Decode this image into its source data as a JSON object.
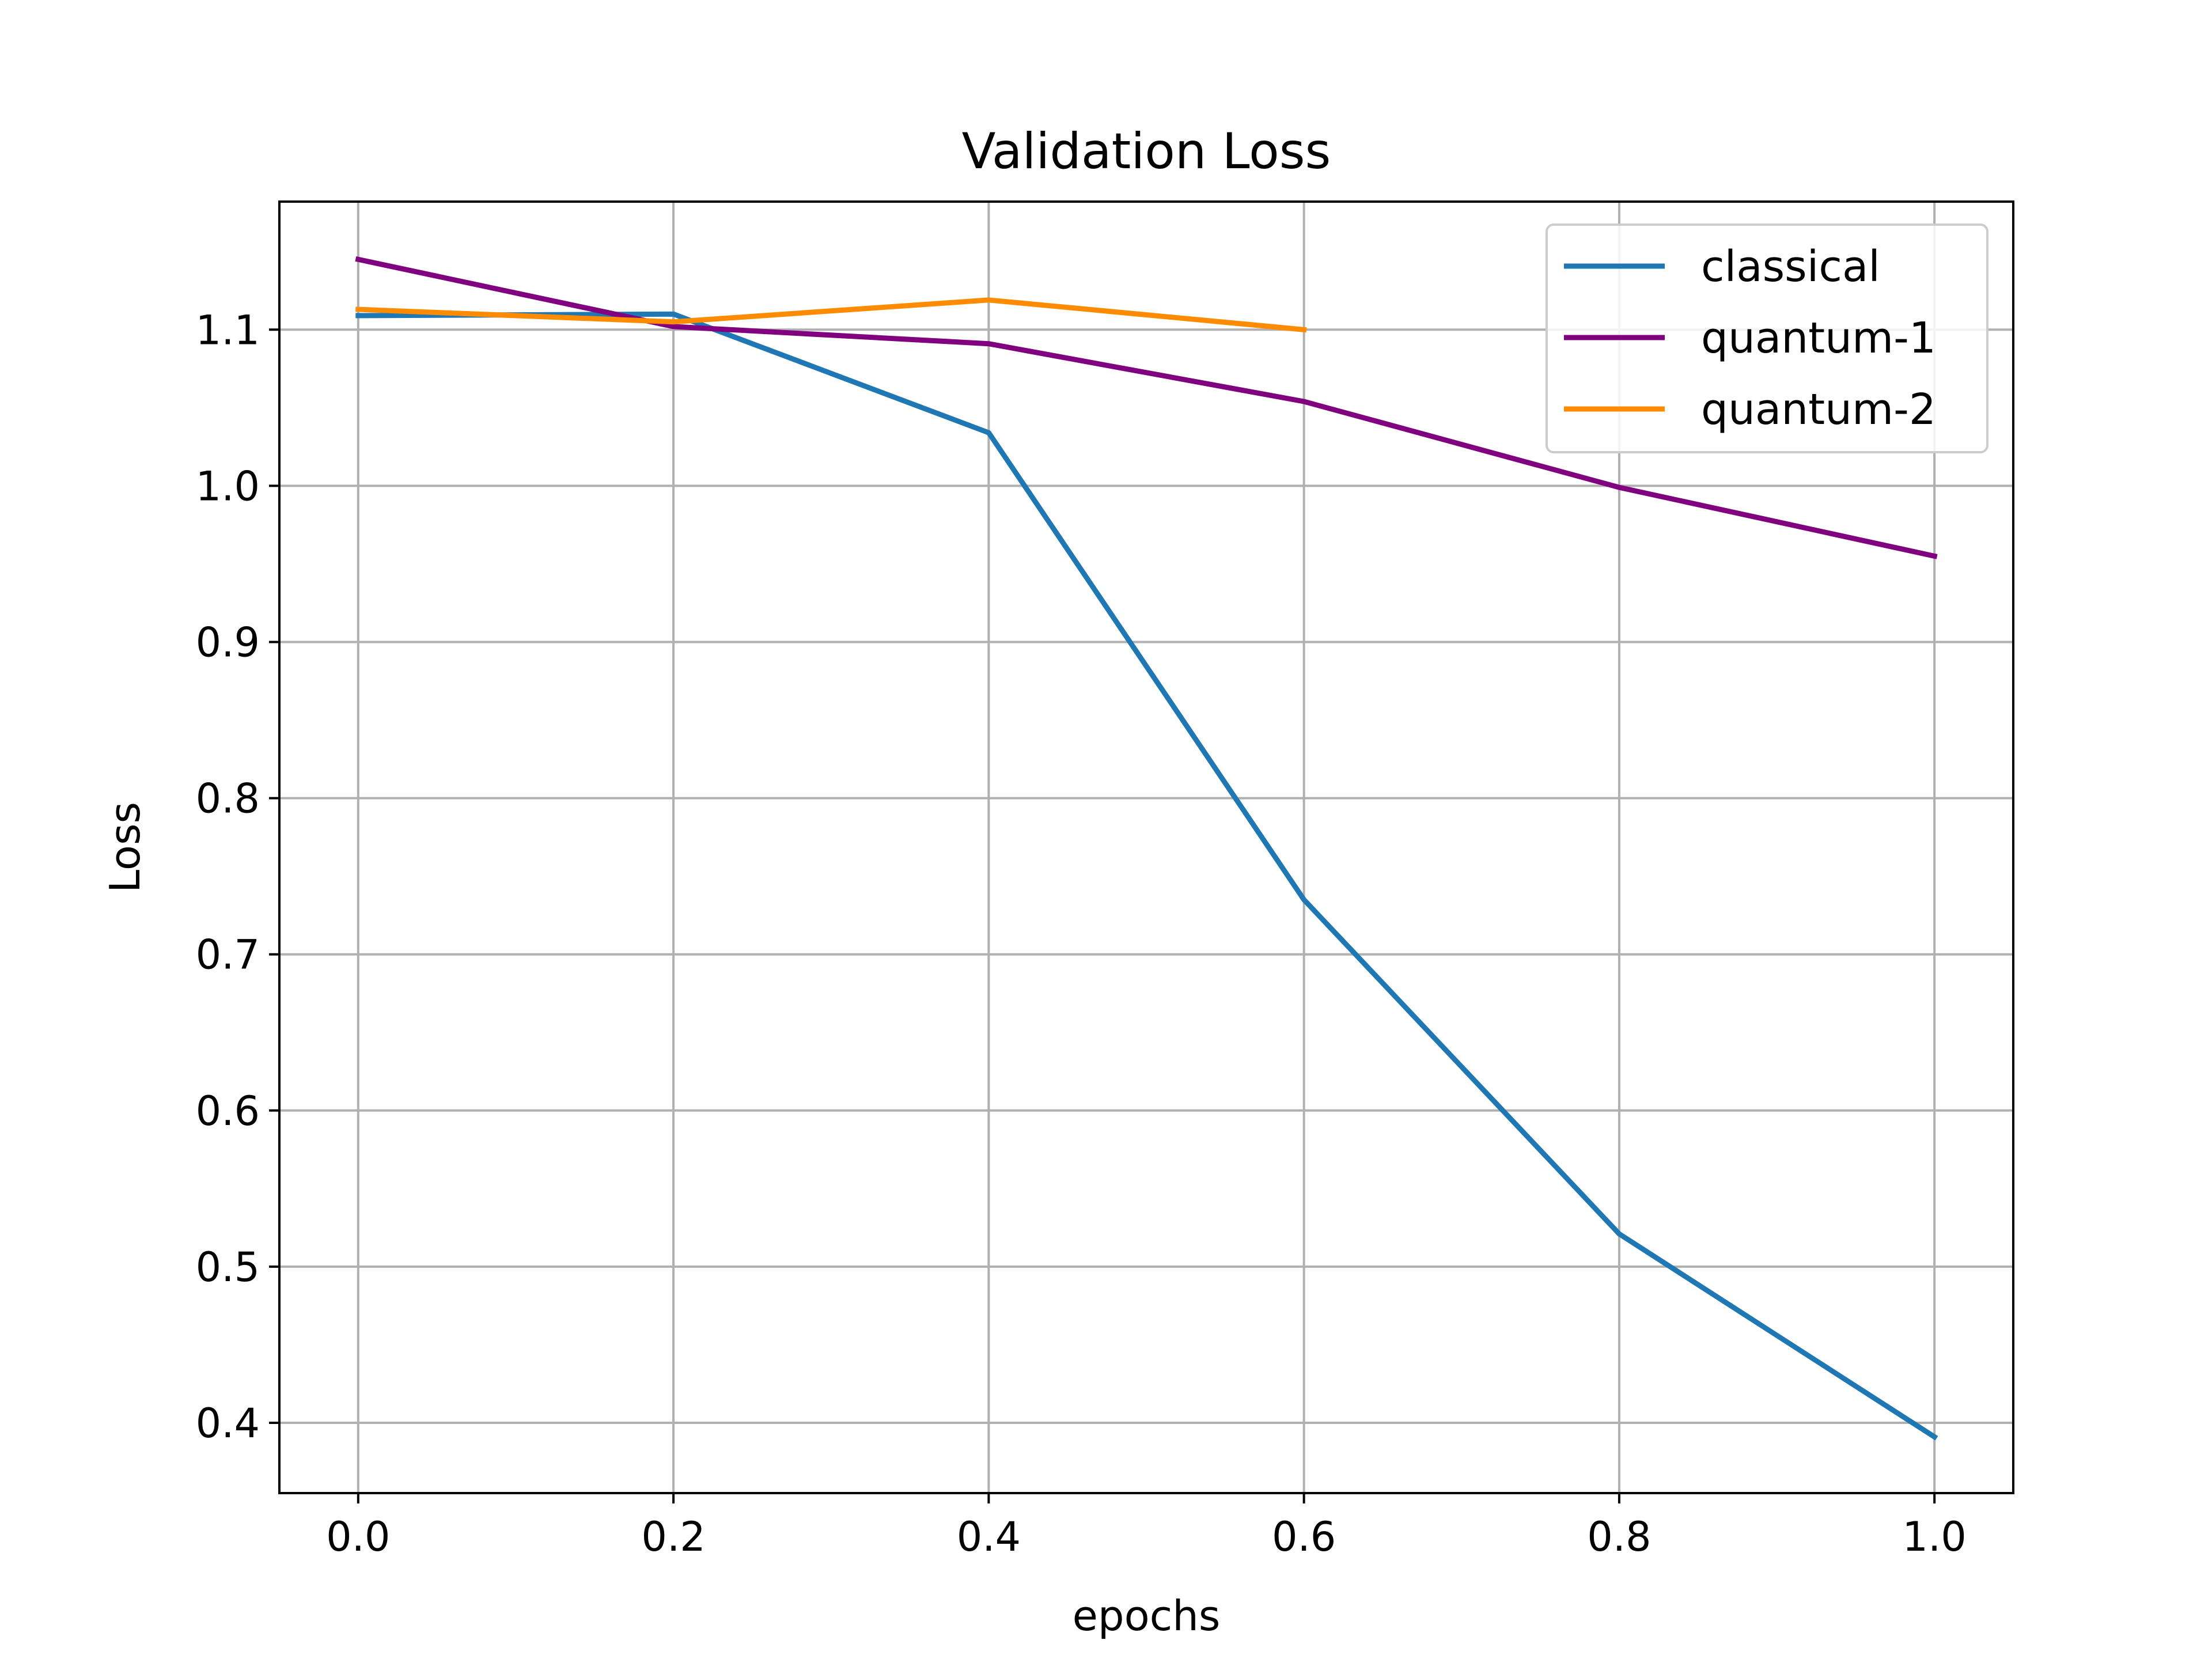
{
  "chart_data": {
    "type": "line",
    "title": "Validation Loss",
    "xlabel": "epochs",
    "ylabel": "Loss",
    "xlim": [
      -0.05,
      1.05
    ],
    "ylim": [
      0.355,
      1.182
    ],
    "xticks": [
      "0.0",
      "0.2",
      "0.4",
      "0.6",
      "0.8",
      "1.0"
    ],
    "xtick_values": [
      0.0,
      0.2,
      0.4,
      0.6,
      0.8,
      1.0
    ],
    "yticks": [
      "0.4",
      "0.5",
      "0.6",
      "0.7",
      "0.8",
      "0.9",
      "1.0",
      "1.1"
    ],
    "ytick_values": [
      0.4,
      0.5,
      0.6,
      0.7,
      0.8,
      0.9,
      1.0,
      1.1
    ],
    "grid": true,
    "legend_position": "top-right",
    "series": [
      {
        "name": "classical",
        "color": "#1f77b4",
        "x": [
          0.0,
          0.2,
          0.4,
          0.6,
          0.8,
          1.0
        ],
        "y": [
          1.109,
          1.11,
          1.034,
          0.735,
          0.521,
          0.391
        ]
      },
      {
        "name": "quantum-1",
        "color": "#800080",
        "x": [
          0.0,
          0.2,
          0.4,
          0.6,
          0.8,
          1.0
        ],
        "y": [
          1.145,
          1.102,
          1.091,
          1.054,
          0.999,
          0.955
        ]
      },
      {
        "name": "quantum-2",
        "color": "#ff8c00",
        "x": [
          0.0,
          0.2,
          0.4,
          0.6
        ],
        "y": [
          1.113,
          1.105,
          1.119,
          1.1
        ]
      }
    ]
  }
}
